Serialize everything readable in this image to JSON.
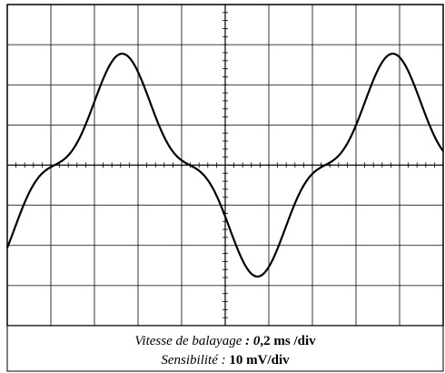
{
  "caption": {
    "line1": [
      {
        "text": "Vitesse de balayage",
        "style": "italic"
      },
      {
        "text": " : ",
        "style": "bold-italic"
      },
      {
        "text": "0",
        "style": "bold-italic"
      },
      {
        "text": ",2 ms /div",
        "style": "bold"
      }
    ],
    "line2": [
      {
        "text": "Sensibilité : ",
        "style": "italic"
      },
      {
        "text": "10 mV/div",
        "style": "bold"
      }
    ]
  }
}
